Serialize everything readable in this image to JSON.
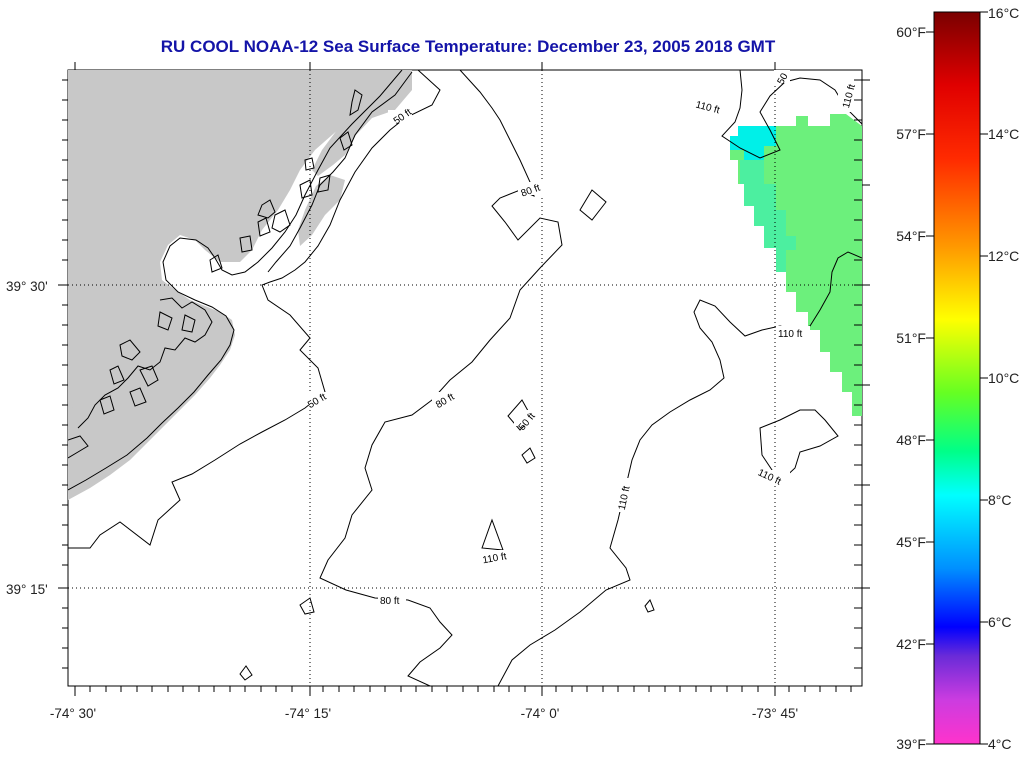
{
  "title": "RU COOL  NOAA-12  Sea Surface Temperature:  December 23, 2005 2018 GMT",
  "axes": {
    "x_labels": [
      "-74° 30'",
      "-74° 15'",
      "-74° 0'",
      "-73° 45'"
    ],
    "y_labels": [
      "39° 30'",
      "39° 15'"
    ]
  },
  "contours": {
    "labels": [
      "50 ft",
      "50 ft",
      "80 ft",
      "80 ft",
      "80 ft",
      "50",
      "110 ft",
      "110 ft",
      "110 ft",
      "110 ft",
      "110 ft",
      "110 ft",
      "50 ft"
    ]
  },
  "colorbar": {
    "celsius": [
      "16°C",
      "14°C",
      "12°C",
      "10°C",
      "8°C",
      "6°C",
      "4°C"
    ],
    "fahrenheit": [
      "60°F",
      "57°F",
      "54°F",
      "51°F",
      "48°F",
      "45°F",
      "42°F",
      "39°F"
    ]
  },
  "colors": {
    "title": "#1414a8",
    "land": "#c8c8c8",
    "sst_patch_main": "#6cf07c",
    "sst_patch_edge": "#00f0e8"
  }
}
